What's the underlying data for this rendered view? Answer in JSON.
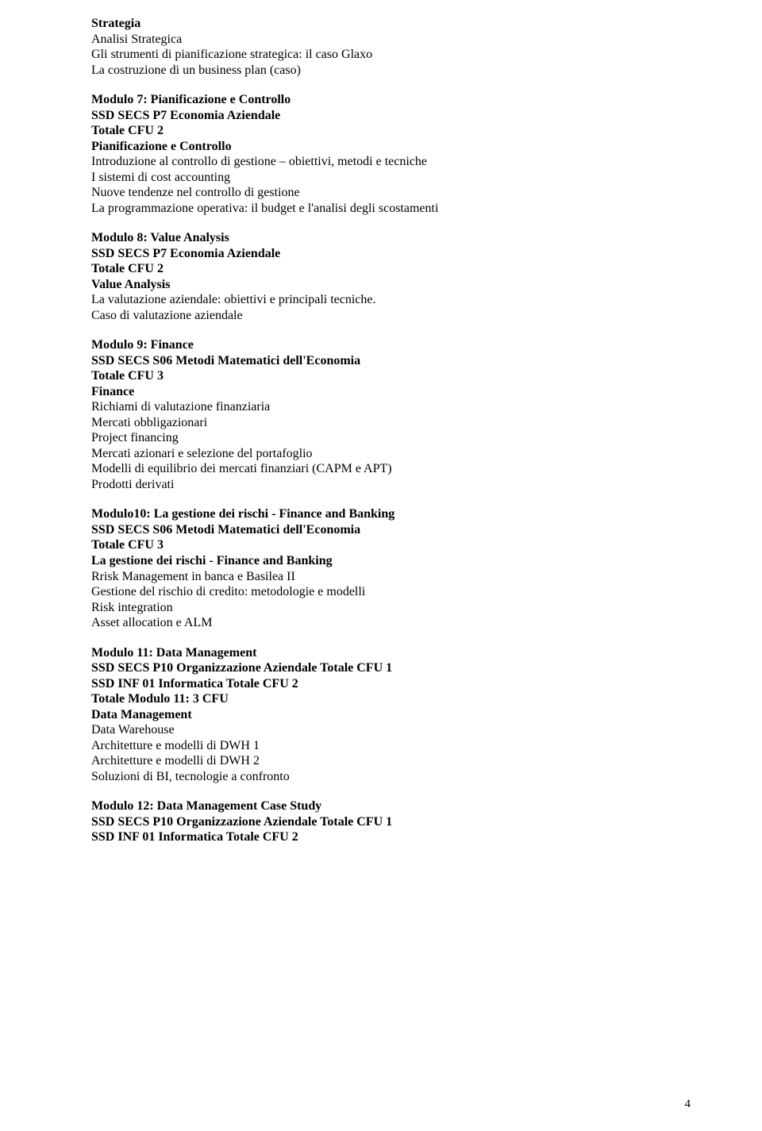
{
  "sections": [
    {
      "lines": [
        {
          "text": "Strategia",
          "bold": true
        },
        {
          "text": "Analisi Strategica",
          "bold": false
        },
        {
          "text": "Gli strumenti di pianificazione strategica: il caso Glaxo",
          "bold": false
        },
        {
          "text": "La costruzione di un business plan (caso)",
          "bold": false
        }
      ]
    },
    {
      "lines": [
        {
          "text": "Modulo 7:  Pianificazione e Controllo",
          "bold": true
        },
        {
          "text": "SSD SECS P7 Economia  Aziendale",
          "bold": true
        },
        {
          "text": "Totale CFU 2",
          "bold": true
        },
        {
          "text": "Pianificazione e Controllo",
          "bold": true
        },
        {
          "text": "Introduzione al controllo di gestione – obiettivi, metodi e tecniche",
          "bold": false
        },
        {
          "text": "I sistemi di cost accounting",
          "bold": false
        },
        {
          "text": "Nuove tendenze nel controllo di gestione",
          "bold": false
        },
        {
          "text": "La programmazione operativa: il budget e l'analisi degli scostamenti",
          "bold": false
        }
      ]
    },
    {
      "lines": [
        {
          "text": "Modulo 8: Value Analysis",
          "bold": true
        },
        {
          "text": "SSD SECS P7 Economia  Aziendale",
          "bold": true
        },
        {
          "text": "Totale CFU 2",
          "bold": true
        },
        {
          "text": "Value Analysis",
          "bold": true
        },
        {
          "text": "La valutazione aziendale: obiettivi e principali tecniche.",
          "bold": false
        },
        {
          "text": "Caso di valutazione aziendale",
          "bold": false
        }
      ]
    },
    {
      "lines": [
        {
          "text": "Modulo 9: Finance",
          "bold": true
        },
        {
          "text": "SSD SECS S06 Metodi Matematici dell'Economia",
          "bold": true
        },
        {
          "text": "Totale CFU 3",
          "bold": true
        },
        {
          "text": "Finance",
          "bold": true
        },
        {
          "text": "Richiami di valutazione finanziaria",
          "bold": false
        },
        {
          "text": "Mercati  obbligazionari",
          "bold": false
        },
        {
          "text": "Project financing",
          "bold": false
        },
        {
          "text": "Mercati azionari e selezione del portafoglio",
          "bold": false
        },
        {
          "text": "Modelli di equilibrio dei mercati finanziari (CAPM e APT)",
          "bold": false
        },
        {
          "text": "Prodotti derivati",
          "bold": false
        }
      ]
    },
    {
      "lines": [
        {
          "text": "Modulo10: La gestione dei rischi - Finance and Banking",
          "bold": true
        },
        {
          "text": "SSD SECS S06 Metodi Matematici dell'Economia",
          "bold": true
        },
        {
          "text": "Totale CFU 3",
          "bold": true
        },
        {
          "text": "La gestione dei rischi - Finance and Banking",
          "bold": true
        },
        {
          "text": "Rrisk Management in banca e Basilea II",
          "bold": false
        },
        {
          "text": "Gestione del rischio di  credito: metodologie e modelli",
          "bold": false
        },
        {
          "text": "Risk integration",
          "bold": false
        },
        {
          "text": "Asset allocation e ALM",
          "bold": false
        }
      ]
    },
    {
      "lines": [
        {
          "text": "Modulo 11: Data Management",
          "bold": true
        },
        {
          "text": "SSD SECS P10  Organizzazione   Aziendale Totale CFU 1",
          "bold": true
        },
        {
          "text": "SSD  INF 01 Informatica Totale CFU 2",
          "bold": true
        },
        {
          "text": "Totale Modulo  11:   3 CFU",
          "bold": true
        },
        {
          "text": "Data Management",
          "bold": true
        },
        {
          "text": "Data Warehouse",
          "bold": false
        },
        {
          "text": "Architetture e modelli di DWH 1",
          "bold": false
        },
        {
          "text": "Architetture e modelli di DWH 2",
          "bold": false
        },
        {
          "text": "Soluzioni di BI, tecnologie a confronto",
          "bold": false
        }
      ]
    },
    {
      "lines": [
        {
          "text": "Modulo 12: Data Management  Case Study",
          "bold": true
        },
        {
          "text": "SSD SECS P10  Organizzazione   Aziendale Totale CFU 1",
          "bold": true
        },
        {
          "text": "SSD  INF 01 Informatica Totale CFU 2",
          "bold": true
        }
      ]
    }
  ],
  "page_number": "4",
  "gap_extra": 18
}
